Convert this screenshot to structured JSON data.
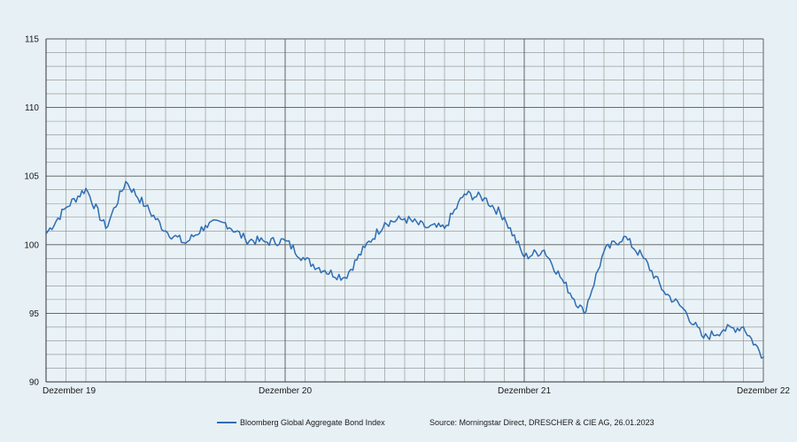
{
  "chart_data": {
    "type": "line",
    "title": "",
    "xlabel": "",
    "ylabel": "",
    "ylim": [
      90,
      115
    ],
    "y_ticks": [
      90,
      95,
      100,
      105,
      110,
      115
    ],
    "x_ticks": [
      "Dezember 19",
      "Dezember 20",
      "Dezember 21",
      "Dezember 22"
    ],
    "xlim": [
      "2019-12",
      "2022-12"
    ],
    "grid": true,
    "legend_position": "bottom-left",
    "series": [
      {
        "name": "Bloomberg Global Aggregate Bond Index",
        "color": "#2e6db4",
        "x": [
          "2019-12",
          "2020-01",
          "2020-02",
          "2020-03",
          "2020-04",
          "2020-05",
          "2020-06",
          "2020-07",
          "2020-08",
          "2020-09",
          "2020-10",
          "2020-11",
          "2020-12",
          "2021-01",
          "2021-02",
          "2021-03",
          "2021-04",
          "2021-05",
          "2021-06",
          "2021-07",
          "2021-08",
          "2021-09",
          "2021-10",
          "2021-11",
          "2021-12",
          "2022-01",
          "2022-02",
          "2022-03",
          "2022-04",
          "2022-05",
          "2022-06",
          "2022-07",
          "2022-08",
          "2022-09",
          "2022-10",
          "2022-11",
          "2022-12"
        ],
        "values": [
          100.8,
          102.7,
          104.1,
          101.2,
          104.6,
          102.8,
          101.0,
          100.1,
          101.4,
          101.6,
          100.4,
          100.2,
          100.3,
          98.9,
          98.1,
          97.6,
          99.8,
          101.6,
          101.9,
          101.3,
          101.2,
          103.7,
          103.4,
          102.0,
          99.1,
          99.6,
          97.2,
          95.0,
          99.5,
          100.6,
          99.0,
          96.6,
          95.3,
          93.2,
          93.8,
          94.0,
          91.8
        ]
      }
    ]
  },
  "legend": {
    "label": "Bloomberg Global Aggregate Bond Index"
  },
  "source": "Source: Morningstar Direct, DRESCHER & CIE AG, 26.01.2023"
}
